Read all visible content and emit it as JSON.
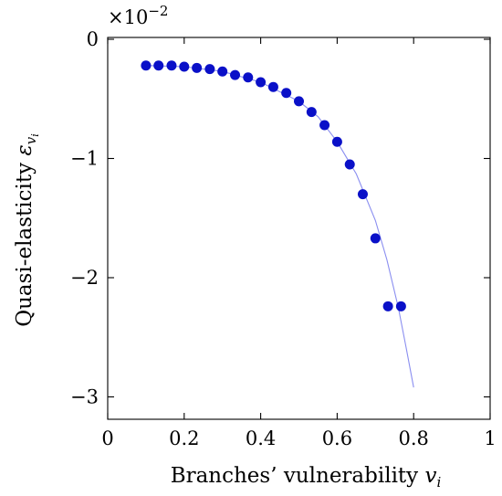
{
  "chart_data": {
    "type": "scatter",
    "title": "",
    "xlabel": "Branches’ vulnerability v_i",
    "xlabel_text": "Branches’ vulnerability ",
    "xlabel_var": "v",
    "xlabel_sub": "i",
    "ylabel": "Quasi-elasticity ε_{v_i}",
    "ylabel_text": "Quasi-elasticity ",
    "ylabel_var": "ε",
    "ylabel_sub": "v",
    "ylabel_subsub": "i",
    "y_scale_note_base": "×10",
    "y_scale_note_exp": "−2",
    "xlim": [
      0,
      1
    ],
    "ylim": [
      -3.2,
      0.05
    ],
    "x_ticks": [
      0,
      0.2,
      0.4,
      0.6,
      0.8,
      1
    ],
    "x_tick_labels": [
      "0",
      "0.2",
      "0.4",
      "0.6",
      "0.8",
      "1"
    ],
    "y_ticks": [
      0,
      -1,
      -2,
      -3
    ],
    "y_tick_labels": [
      "0",
      "−1",
      "−2",
      "−3"
    ],
    "grid": false,
    "series": [
      {
        "kind": "points",
        "color": "#0a10c8",
        "x": [
          0.1,
          0.133,
          0.167,
          0.2,
          0.233,
          0.267,
          0.3,
          0.333,
          0.367,
          0.4,
          0.433,
          0.467,
          0.5,
          0.533,
          0.567,
          0.6,
          0.633,
          0.667,
          0.7,
          0.733,
          0.767
        ],
        "y": [
          -0.22,
          -0.22,
          -0.22,
          -0.23,
          -0.24,
          -0.25,
          -0.27,
          -0.3,
          -0.32,
          -0.36,
          -0.4,
          -0.45,
          -0.52,
          -0.61,
          -0.72,
          -0.86,
          -1.05,
          -1.3,
          -1.67,
          -2.24,
          -2.24
        ]
      },
      {
        "kind": "line",
        "color": "#8a8ef0",
        "x": [
          0.1,
          0.2,
          0.3,
          0.4,
          0.5,
          0.55,
          0.6,
          0.65,
          0.7,
          0.73,
          0.76,
          0.78,
          0.8
        ],
        "y": [
          -0.22,
          -0.23,
          -0.27,
          -0.36,
          -0.52,
          -0.65,
          -0.86,
          -1.13,
          -1.52,
          -1.85,
          -2.25,
          -2.58,
          -2.92
        ]
      }
    ]
  }
}
